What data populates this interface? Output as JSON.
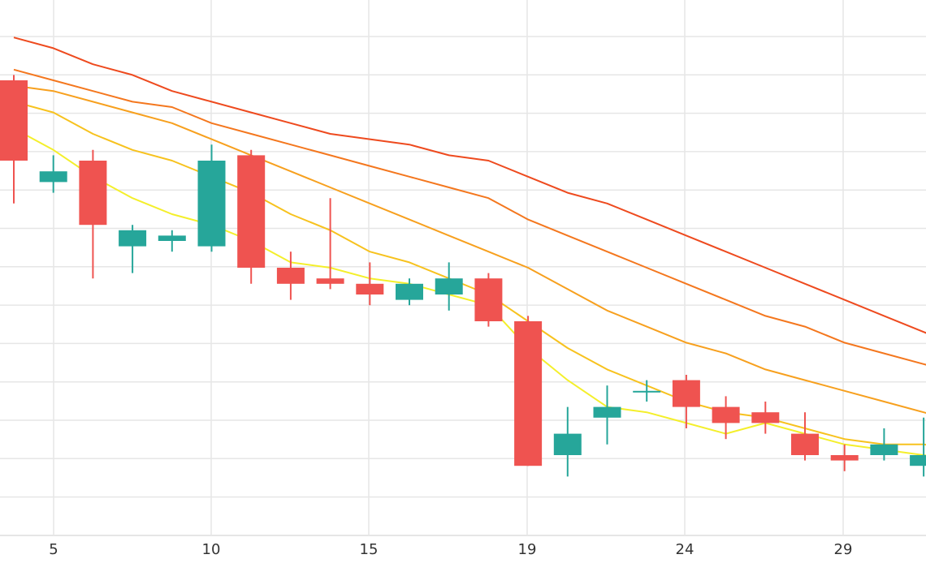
{
  "chart_data": {
    "type": "candlestick",
    "x_ticks": [
      "5",
      "10",
      "15",
      "19",
      "24",
      "29"
    ],
    "candles": [
      {
        "open": 8.0,
        "close": 6.5,
        "high": 8.1,
        "low": 5.7,
        "direction": "down"
      },
      {
        "open": 6.1,
        "close": 6.3,
        "high": 6.6,
        "low": 5.9,
        "direction": "up"
      },
      {
        "open": 6.5,
        "close": 5.3,
        "high": 6.7,
        "low": 4.3,
        "direction": "down"
      },
      {
        "open": 4.9,
        "close": 5.2,
        "high": 5.3,
        "low": 4.4,
        "direction": "up"
      },
      {
        "open": 5.0,
        "close": 5.1,
        "high": 5.2,
        "low": 4.8,
        "direction": "up"
      },
      {
        "open": 4.9,
        "close": 6.5,
        "high": 6.8,
        "low": 4.8,
        "direction": "up"
      },
      {
        "open": 6.6,
        "close": 4.5,
        "high": 6.7,
        "low": 4.2,
        "direction": "down"
      },
      {
        "open": 4.5,
        "close": 4.2,
        "high": 4.8,
        "low": 3.9,
        "direction": "down"
      },
      {
        "open": 4.3,
        "close": 4.2,
        "high": 5.8,
        "low": 4.1,
        "direction": "down"
      },
      {
        "open": 4.2,
        "close": 4.0,
        "high": 4.6,
        "low": 3.8,
        "direction": "down"
      },
      {
        "open": 3.9,
        "close": 4.2,
        "high": 4.3,
        "low": 3.8,
        "direction": "up"
      },
      {
        "open": 4.0,
        "close": 4.3,
        "high": 4.6,
        "low": 3.7,
        "direction": "up"
      },
      {
        "open": 4.3,
        "close": 3.5,
        "high": 4.4,
        "low": 3.4,
        "direction": "down"
      },
      {
        "open": 3.5,
        "close": 0.8,
        "high": 3.6,
        "low": 0.8,
        "direction": "down"
      },
      {
        "open": 1.0,
        "close": 1.4,
        "high": 1.9,
        "low": 0.6,
        "direction": "up"
      },
      {
        "open": 1.7,
        "close": 1.9,
        "high": 2.3,
        "low": 1.2,
        "direction": "up"
      },
      {
        "open": 2.2,
        "close": 2.2,
        "high": 2.4,
        "low": 2.0,
        "direction": "up"
      },
      {
        "open": 2.4,
        "close": 1.9,
        "high": 2.5,
        "low": 1.5,
        "direction": "down"
      },
      {
        "open": 1.9,
        "close": 1.6,
        "high": 2.1,
        "low": 1.3,
        "direction": "down"
      },
      {
        "open": 1.8,
        "close": 1.6,
        "high": 2.0,
        "low": 1.4,
        "direction": "down"
      },
      {
        "open": 1.4,
        "close": 1.0,
        "high": 1.8,
        "low": 0.9,
        "direction": "down"
      },
      {
        "open": 1.0,
        "close": 0.9,
        "high": 1.2,
        "low": 0.7,
        "direction": "down"
      },
      {
        "open": 1.0,
        "close": 1.2,
        "high": 1.5,
        "low": 0.9,
        "direction": "up"
      },
      {
        "open": 0.8,
        "close": 1.0,
        "high": 1.7,
        "low": 0.6,
        "direction": "up"
      },
      {
        "open": 0.9,
        "close": 0.3,
        "high": 1.2,
        "low": 0.1,
        "direction": "down"
      }
    ],
    "moving_averages": [
      {
        "color": "#f4ef2b",
        "values": [
          7.1,
          6.7,
          6.2,
          5.8,
          5.5,
          5.3,
          5.0,
          4.6,
          4.5,
          4.3,
          4.2,
          4.0,
          3.8,
          3.0,
          2.4,
          1.9,
          1.8,
          1.6,
          1.4,
          1.6,
          1.4,
          1.2,
          1.1,
          1.0,
          0.9
        ]
      },
      {
        "color": "#f7c21e",
        "values": [
          7.6,
          7.4,
          7.0,
          6.7,
          6.5,
          6.2,
          5.9,
          5.5,
          5.2,
          4.8,
          4.6,
          4.3,
          4.0,
          3.5,
          3.0,
          2.6,
          2.3,
          2.0,
          1.8,
          1.7,
          1.5,
          1.3,
          1.2,
          1.2,
          1.1
        ]
      },
      {
        "color": "#f7a01e",
        "values": [
          7.9,
          7.8,
          7.6,
          7.4,
          7.2,
          6.9,
          6.6,
          6.3,
          6.0,
          5.7,
          5.4,
          5.1,
          4.8,
          4.5,
          4.1,
          3.7,
          3.4,
          3.1,
          2.9,
          2.6,
          2.4,
          2.2,
          2.0,
          1.8,
          1.6
        ]
      },
      {
        "color": "#f4771e",
        "values": [
          8.2,
          8.0,
          7.8,
          7.6,
          7.5,
          7.2,
          7.0,
          6.8,
          6.6,
          6.4,
          6.2,
          6.0,
          5.8,
          5.4,
          5.1,
          4.8,
          4.5,
          4.2,
          3.9,
          3.6,
          3.4,
          3.1,
          2.9,
          2.7,
          2.5
        ]
      },
      {
        "color": "#ee4a1e",
        "values": [
          8.8,
          8.6,
          8.3,
          8.1,
          7.8,
          7.6,
          7.4,
          7.2,
          7.0,
          6.9,
          6.8,
          6.6,
          6.5,
          6.2,
          5.9,
          5.7,
          5.4,
          5.1,
          4.8,
          4.5,
          4.2,
          3.9,
          3.6,
          3.3,
          3.0
        ]
      }
    ],
    "colors": {
      "up": "#26a69a",
      "down": "#ef5350",
      "grid": "#e6e6e6"
    },
    "grid": true,
    "legend": "none"
  }
}
